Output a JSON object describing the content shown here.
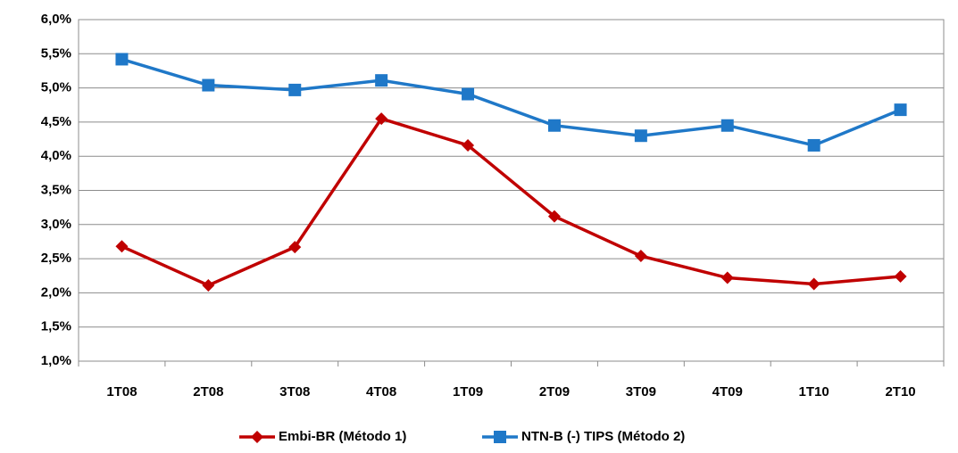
{
  "chart_data": {
    "type": "line",
    "categories": [
      "1T08",
      "2T08",
      "3T08",
      "4T08",
      "1T09",
      "2T09",
      "3T09",
      "4T09",
      "1T10",
      "2T10"
    ],
    "series": [
      {
        "name": "Embi-BR (Método 1)",
        "color": "#c00000",
        "marker": "diamond",
        "values": [
          2.68,
          2.11,
          2.67,
          4.55,
          4.16,
          3.12,
          2.54,
          2.22,
          2.13,
          2.24
        ]
      },
      {
        "name": "NTN-B (-) TIPS (Método 2)",
        "color": "#1f78c8",
        "marker": "square",
        "values": [
          5.42,
          5.04,
          4.97,
          5.11,
          4.91,
          4.45,
          4.3,
          4.45,
          4.16,
          4.68
        ]
      }
    ],
    "ylim": [
      1.0,
      6.0
    ],
    "yticks": [
      {
        "value": 1.0,
        "label": "1,0%"
      },
      {
        "value": 1.5,
        "label": "1,5%"
      },
      {
        "value": 2.0,
        "label": "2,0%"
      },
      {
        "value": 2.5,
        "label": "2,5%"
      },
      {
        "value": 3.0,
        "label": "3,0%"
      },
      {
        "value": 3.5,
        "label": "3,5%"
      },
      {
        "value": 4.0,
        "label": "4,0%"
      },
      {
        "value": 4.5,
        "label": "4,5%"
      },
      {
        "value": 5.0,
        "label": "5,0%"
      },
      {
        "value": 5.5,
        "label": "5,5%"
      },
      {
        "value": 6.0,
        "label": "6,0%"
      }
    ],
    "grid": true,
    "legend": "bottom"
  }
}
